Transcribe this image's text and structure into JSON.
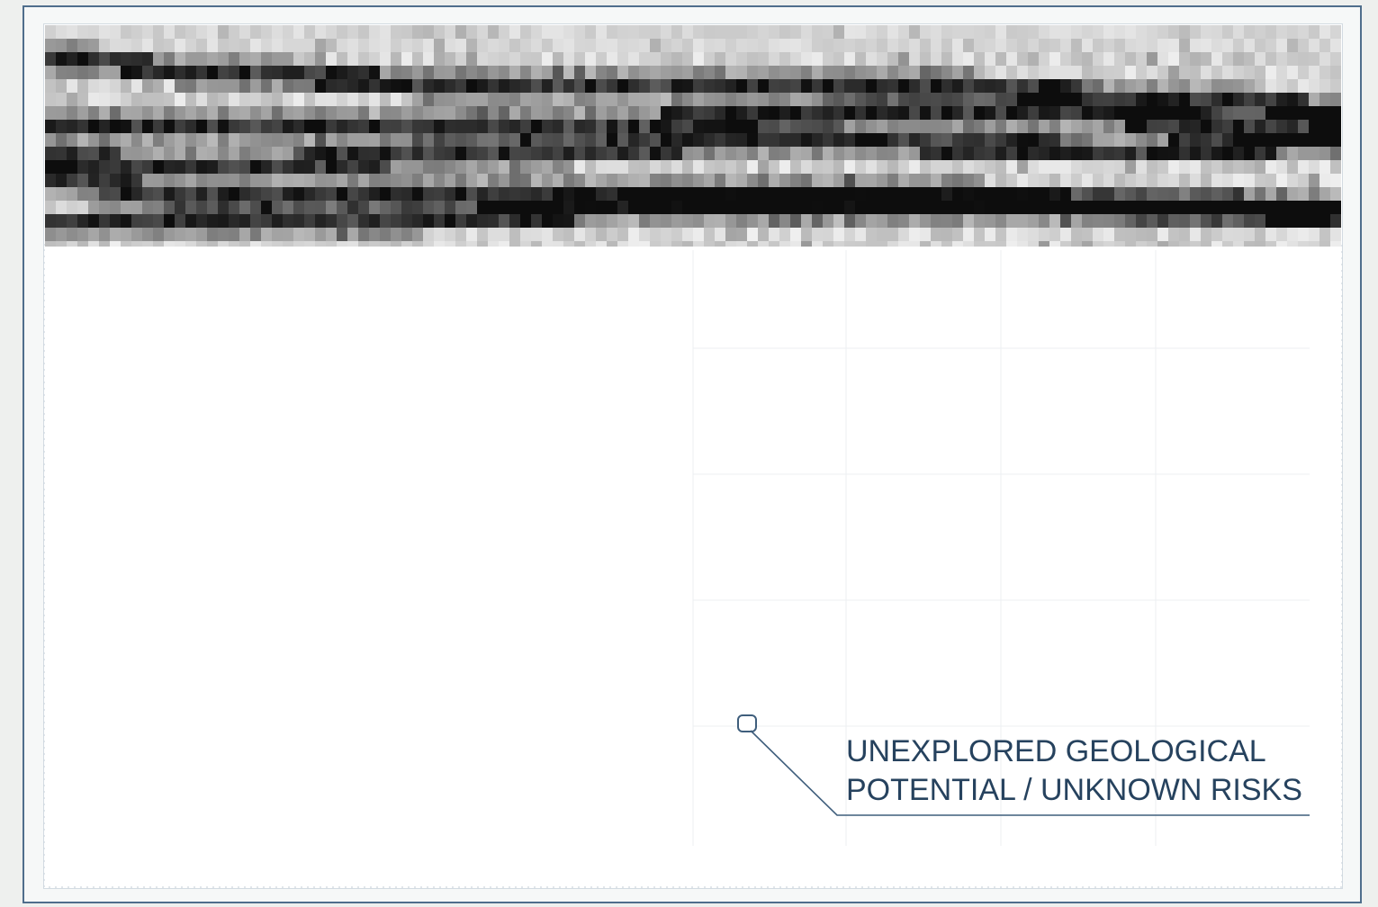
{
  "callout": {
    "line1": "UNEXPLORED GEOLOGICAL",
    "line2": "POTENTIAL / UNKNOWN RISKS"
  },
  "colors": {
    "frame": "#4f6e8c",
    "text": "#26425e",
    "grid": "#e8ecf0",
    "panel": "#ffffff",
    "page": "#eef0ee"
  },
  "strip": {
    "description_icon": "seismic-strata-band",
    "palette": "grayscale"
  }
}
